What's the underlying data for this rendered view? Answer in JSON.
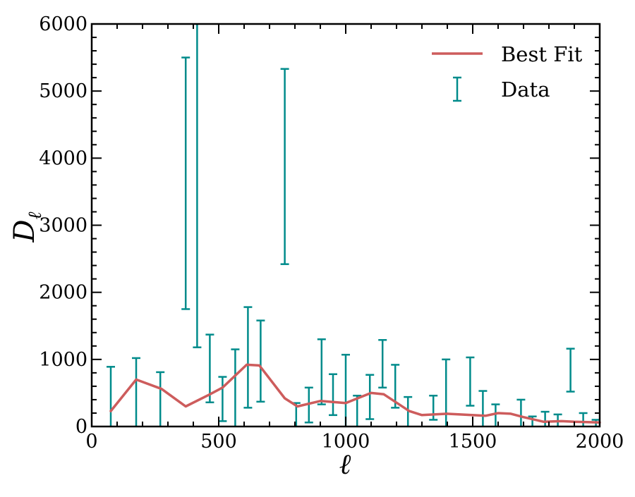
{
  "colors": {
    "best_fit": "#cd5c5c",
    "data": "#008b8b",
    "axis": "#000000",
    "background": "#ffffff"
  },
  "chart_data": {
    "type": "line",
    "title": "",
    "xlabel": "ℓ",
    "ylabel_main": "D",
    "ylabel_sub": "ℓ",
    "xlim": [
      0,
      2000
    ],
    "ylim": [
      0,
      6000
    ],
    "x_ticks": [
      0,
      500,
      1000,
      1500,
      2000
    ],
    "x_tick_labels": [
      "0",
      "500",
      "1000",
      "1500",
      "2000"
    ],
    "y_ticks": [
      0,
      1000,
      2000,
      3000,
      4000,
      5000,
      6000
    ],
    "y_tick_labels": [
      "0",
      "1000",
      "2000",
      "3000",
      "4000",
      "5000",
      "6000"
    ],
    "grid": false,
    "legend": {
      "position": "top-right"
    },
    "series": [
      {
        "name": "Best Fit",
        "kind": "line",
        "x": [
          75,
          175,
          275,
          370,
          460,
          515,
          610,
          660,
          760,
          810,
          900,
          1000,
          1100,
          1150,
          1250,
          1300,
          1400,
          1450,
          1550,
          1600,
          1650,
          1700,
          1780,
          1850,
          1900,
          2000
        ],
        "y": [
          230,
          700,
          560,
          300,
          470,
          580,
          920,
          910,
          420,
          300,
          380,
          350,
          500,
          480,
          230,
          170,
          190,
          180,
          160,
          200,
          190,
          140,
          70,
          80,
          70,
          60
        ]
      },
      {
        "name": "Data",
        "kind": "errorbar",
        "points": [
          {
            "x": 75,
            "low": 0,
            "high": 890
          },
          {
            "x": 175,
            "low": 0,
            "high": 1020
          },
          {
            "x": 270,
            "low": 0,
            "high": 810
          },
          {
            "x": 370,
            "low": 1750,
            "high": 5500
          },
          {
            "x": 415,
            "low": 1180,
            "high": 6000
          },
          {
            "x": 465,
            "low": 360,
            "high": 1370
          },
          {
            "x": 515,
            "low": 80,
            "high": 740
          },
          {
            "x": 565,
            "low": 0,
            "high": 1150
          },
          {
            "x": 615,
            "low": 280,
            "high": 1780
          },
          {
            "x": 665,
            "low": 370,
            "high": 1580
          },
          {
            "x": 760,
            "low": 2420,
            "high": 5330
          },
          {
            "x": 805,
            "low": 0,
            "high": 350
          },
          {
            "x": 855,
            "low": 60,
            "high": 580
          },
          {
            "x": 905,
            "low": 330,
            "high": 1300
          },
          {
            "x": 950,
            "low": 170,
            "high": 780
          },
          {
            "x": 1000,
            "low": 0,
            "high": 1070
          },
          {
            "x": 1045,
            "low": 0,
            "high": 460
          },
          {
            "x": 1095,
            "low": 110,
            "high": 770
          },
          {
            "x": 1145,
            "low": 580,
            "high": 1290
          },
          {
            "x": 1195,
            "low": 280,
            "high": 920
          },
          {
            "x": 1245,
            "low": 0,
            "high": 440
          },
          {
            "x": 1345,
            "low": 100,
            "high": 460
          },
          {
            "x": 1395,
            "low": 0,
            "high": 1000
          },
          {
            "x": 1490,
            "low": 310,
            "high": 1030
          },
          {
            "x": 1540,
            "low": 0,
            "high": 530
          },
          {
            "x": 1590,
            "low": 0,
            "high": 330
          },
          {
            "x": 1690,
            "low": 0,
            "high": 400
          },
          {
            "x": 1735,
            "low": 0,
            "high": 150
          },
          {
            "x": 1785,
            "low": 0,
            "high": 220
          },
          {
            "x": 1835,
            "low": 0,
            "high": 180
          },
          {
            "x": 1885,
            "low": 520,
            "high": 1160
          },
          {
            "x": 1935,
            "low": 0,
            "high": 200
          },
          {
            "x": 1985,
            "low": 0,
            "high": 100
          }
        ]
      }
    ]
  }
}
